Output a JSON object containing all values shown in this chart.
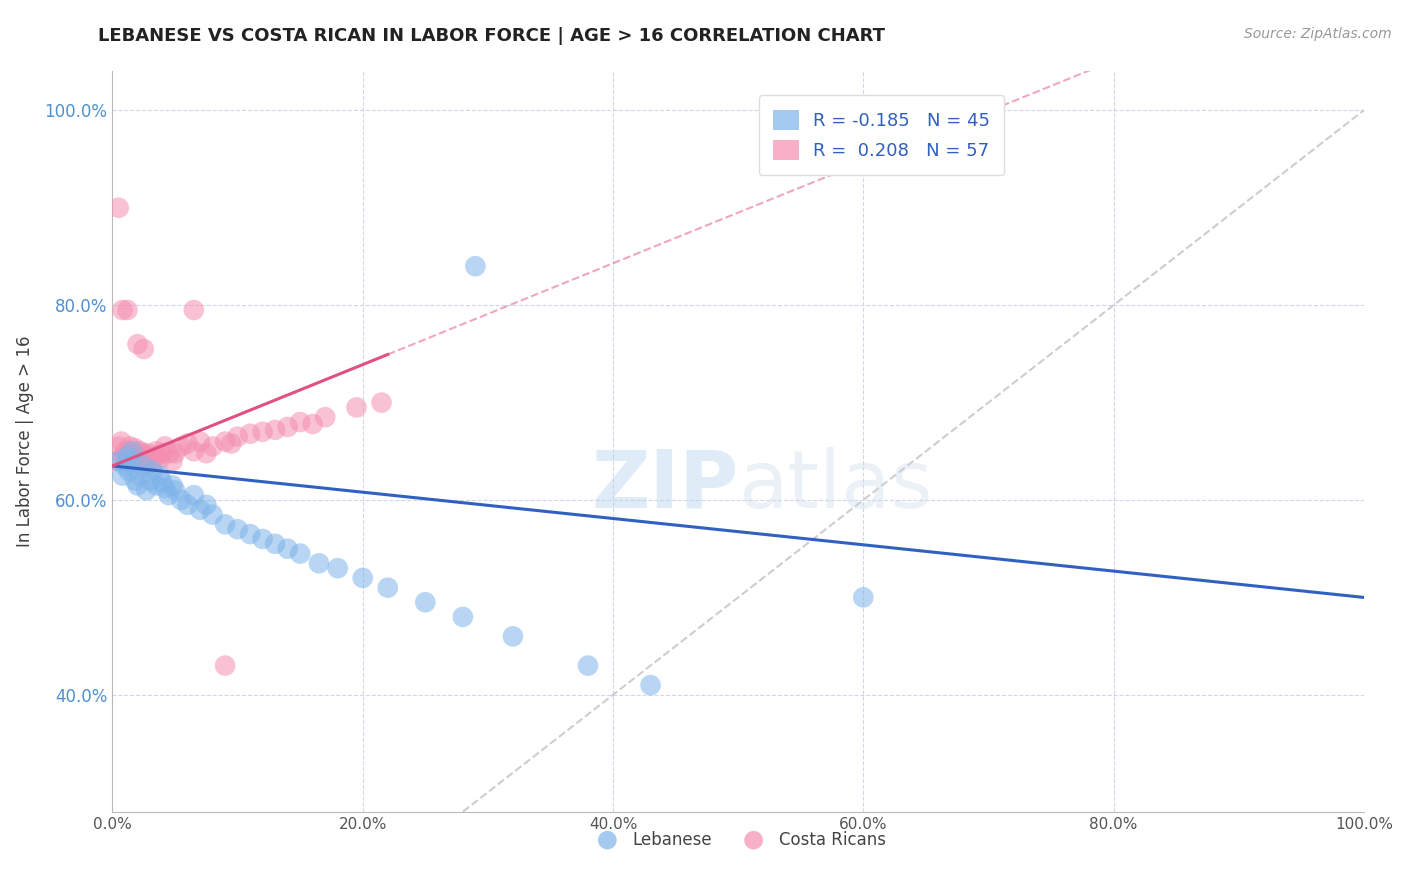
{
  "title": "LEBANESE VS COSTA RICAN IN LABOR FORCE | AGE > 16 CORRELATION CHART",
  "source_text": "Source: ZipAtlas.com",
  "xlabel": "",
  "ylabel": "In Labor Force | Age > 16",
  "xlim": [
    0.0,
    1.0
  ],
  "ylim": [
    0.28,
    1.04
  ],
  "xticks": [
    0.0,
    0.2,
    0.4,
    0.6,
    0.8,
    1.0
  ],
  "yticks": [
    0.4,
    0.6,
    0.8,
    1.0
  ],
  "ytick_labels": [
    "40.0%",
    "60.0%",
    "80.0%",
    "100.0%"
  ],
  "xtick_labels": [
    "0.0%",
    "20.0%",
    "40.0%",
    "60.0%",
    "80.0%",
    "100.0%"
  ],
  "legend_entries": [
    {
      "label": "R = -0.185   N = 45",
      "color": "#aec6f0"
    },
    {
      "label": "R =  0.208   N = 57",
      "color": "#f4b8c8"
    }
  ],
  "lebanese_color": "#7eb4ea",
  "costarican_color": "#f48fb1",
  "lebanese_line_color": "#3060c0",
  "costarican_line_color": "#e05080",
  "diagonal_color": "#c8c8c8",
  "background_color": "#ffffff",
  "grid_color": "#d0d8e8",
  "watermark_text": "ZIPatlas",
  "lebanese_x": [
    0.005,
    0.008,
    0.01,
    0.012,
    0.013,
    0.015,
    0.016,
    0.018,
    0.02,
    0.022,
    0.025,
    0.027,
    0.03,
    0.032,
    0.035,
    0.038,
    0.04,
    0.042,
    0.045,
    0.048,
    0.05,
    0.055,
    0.06,
    0.065,
    0.07,
    0.075,
    0.08,
    0.09,
    0.1,
    0.11,
    0.12,
    0.13,
    0.14,
    0.15,
    0.165,
    0.18,
    0.2,
    0.22,
    0.25,
    0.28,
    0.32,
    0.38,
    0.43,
    0.6,
    0.29
  ],
  "lebanese_y": [
    0.64,
    0.625,
    0.635,
    0.645,
    0.63,
    0.64,
    0.65,
    0.62,
    0.615,
    0.625,
    0.635,
    0.61,
    0.62,
    0.63,
    0.615,
    0.625,
    0.618,
    0.612,
    0.605,
    0.615,
    0.61,
    0.6,
    0.595,
    0.605,
    0.59,
    0.595,
    0.585,
    0.575,
    0.57,
    0.565,
    0.56,
    0.555,
    0.55,
    0.545,
    0.535,
    0.53,
    0.52,
    0.51,
    0.495,
    0.48,
    0.46,
    0.43,
    0.41,
    0.5,
    0.84
  ],
  "costarican_x": [
    0.003,
    0.005,
    0.007,
    0.008,
    0.01,
    0.011,
    0.012,
    0.013,
    0.014,
    0.015,
    0.016,
    0.017,
    0.018,
    0.02,
    0.021,
    0.022,
    0.023,
    0.024,
    0.025,
    0.026,
    0.027,
    0.028,
    0.03,
    0.032,
    0.034,
    0.035,
    0.038,
    0.04,
    0.042,
    0.045,
    0.048,
    0.05,
    0.055,
    0.06,
    0.065,
    0.07,
    0.075,
    0.08,
    0.09,
    0.095,
    0.1,
    0.11,
    0.12,
    0.13,
    0.14,
    0.15,
    0.16,
    0.17,
    0.195,
    0.215,
    0.005,
    0.008,
    0.012,
    0.02,
    0.025,
    0.065,
    0.09
  ],
  "costarican_y": [
    0.64,
    0.655,
    0.66,
    0.645,
    0.65,
    0.645,
    0.64,
    0.65,
    0.655,
    0.642,
    0.638,
    0.648,
    0.653,
    0.645,
    0.638,
    0.65,
    0.644,
    0.648,
    0.64,
    0.645,
    0.635,
    0.648,
    0.64,
    0.638,
    0.645,
    0.65,
    0.642,
    0.648,
    0.655,
    0.648,
    0.64,
    0.648,
    0.655,
    0.658,
    0.65,
    0.66,
    0.648,
    0.655,
    0.66,
    0.658,
    0.665,
    0.668,
    0.67,
    0.672,
    0.675,
    0.68,
    0.678,
    0.685,
    0.695,
    0.7,
    0.9,
    0.795,
    0.795,
    0.76,
    0.755,
    0.795,
    0.43
  ]
}
